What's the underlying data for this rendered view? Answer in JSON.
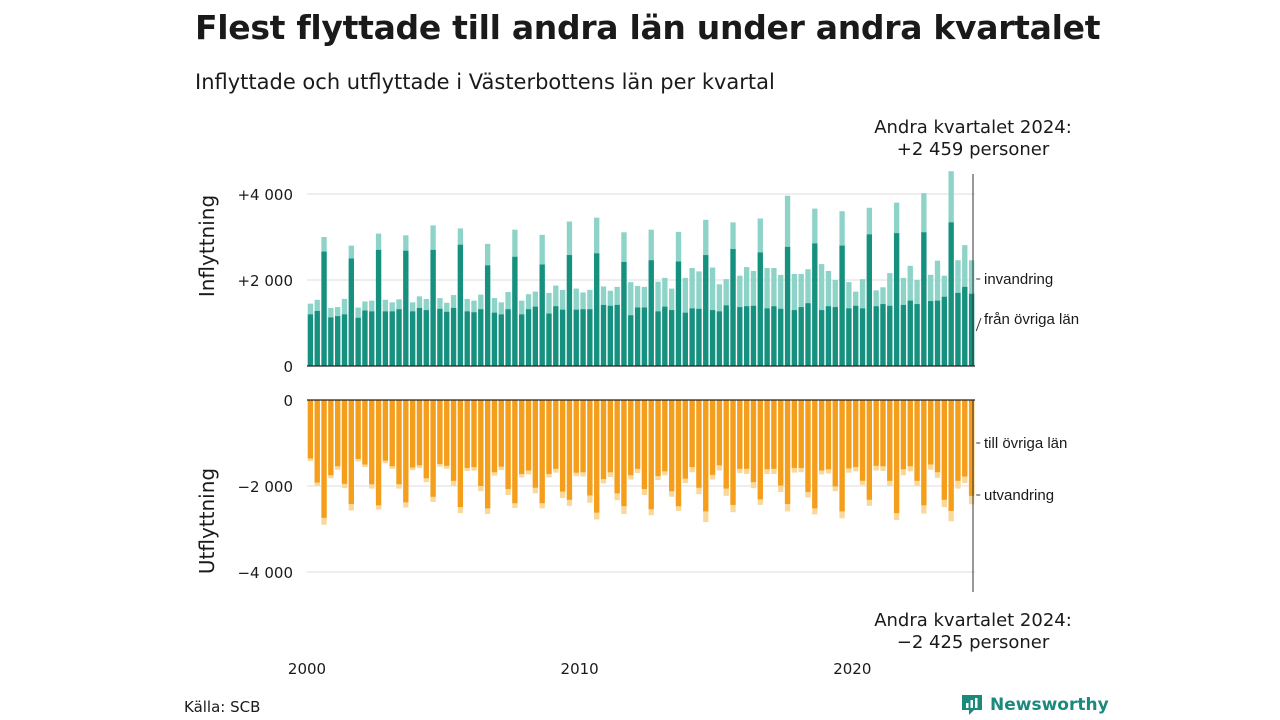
{
  "header": {
    "title": "Flest flyttade till andra län under andra kvartalet",
    "subtitle": "Inflyttade och utflyttade i Västerbottens län per kvartal"
  },
  "footer": {
    "source": "Källa: SCB",
    "brand": "Newsworthy"
  },
  "annotations": {
    "top_line1": "Andra kvartalet 2024:",
    "top_line2": "+2 459 personer",
    "bottom_line1": "Andra kvartalet 2024:",
    "bottom_line2": "−2 425 personer"
  },
  "colors": {
    "in_total": "#8dd3c7",
    "in_other_counties": "#16917f",
    "out_total": "#f9d89a",
    "out_other_counties": "#f59e1b",
    "brand": "#1b8a7c"
  },
  "chart_data": {
    "type": "bar",
    "x": {
      "start_year": 2000,
      "start_quarter": 1,
      "end_year": 2024,
      "end_quarter": 2,
      "tick_labels": [
        "2000",
        "2010",
        "2020"
      ]
    },
    "panels": [
      {
        "ylabel": "Inflyttning",
        "ylim": [
          0,
          4500
        ],
        "ticks": [
          0,
          2000,
          4000
        ],
        "tick_labels": [
          "0",
          "+2 000",
          "+4 000"
        ],
        "series": [
          {
            "name": "invandring",
            "role": "total",
            "values": [
              1450,
              1540,
              3000,
              1350,
              1370,
              1560,
              2800,
              1360,
              1500,
              1520,
              3080,
              1540,
              1480,
              1550,
              3040,
              1480,
              1620,
              1560,
              3270,
              1580,
              1470,
              1650,
              3200,
              1560,
              1520,
              1660,
              2840,
              1580,
              1480,
              1720,
              3170,
              1520,
              1670,
              1730,
              3050,
              1700,
              1870,
              1770,
              3360,
              1800,
              1710,
              1770,
              3450,
              1850,
              1750,
              1840,
              3110,
              1950,
              1860,
              1840,
              3170,
              1960,
              2050,
              1800,
              3120,
              2050,
              2280,
              2200,
              3400,
              2290,
              1900,
              2020,
              3340,
              2100,
              2300,
              2210,
              3430,
              2280,
              2280,
              2120,
              3960,
              2140,
              2140,
              2250,
              3660,
              2370,
              2210,
              2000,
              3600,
              1950,
              1730,
              2020,
              3680,
              1760,
              1830,
              2160,
              3800,
              2050,
              2330,
              2000,
              4020,
              2120,
              2450,
              2100,
              4530,
              2460,
              2810,
              2459
            ]
          },
          {
            "name": "från övriga län",
            "role": "part",
            "values": [
              1200,
              1280,
              2660,
              1130,
              1160,
              1200,
              2500,
              1120,
              1290,
              1270,
              2700,
              1270,
              1270,
              1320,
              2680,
              1270,
              1350,
              1300,
              2700,
              1330,
              1260,
              1350,
              2820,
              1270,
              1250,
              1320,
              2340,
              1240,
              1200,
              1320,
              2540,
              1200,
              1320,
              1380,
              2360,
              1220,
              1390,
              1310,
              2580,
              1310,
              1320,
              1320,
              2620,
              1420,
              1400,
              1420,
              2420,
              1180,
              1360,
              1360,
              2460,
              1270,
              1380,
              1300,
              2430,
              1240,
              1340,
              1330,
              2580,
              1300,
              1270,
              1410,
              2720,
              1370,
              1390,
              1400,
              2640,
              1340,
              1390,
              1330,
              2770,
              1300,
              1370,
              1460,
              2850,
              1300,
              1390,
              1370,
              2800,
              1340,
              1400,
              1340,
              3060,
              1390,
              1440,
              1400,
              3090,
              1420,
              1520,
              1440,
              3110,
              1510,
              1520,
              1610,
              3340,
              1700,
              1840,
              1680
            ]
          }
        ]
      },
      {
        "ylabel": "Utflyttning",
        "ylim": [
          -4500,
          0
        ],
        "ticks": [
          0,
          -2000,
          -4000
        ],
        "tick_labels": [
          "0",
          "−2 000",
          "−4 000"
        ],
        "series": [
          {
            "name": "utvandring",
            "role": "total",
            "values": [
              -1420,
              -2000,
              -2900,
              -1820,
              -1620,
              -2050,
              -2570,
              -1430,
              -1560,
              -2060,
              -2550,
              -1470,
              -1600,
              -2060,
              -2500,
              -1630,
              -1580,
              -1910,
              -2370,
              -1550,
              -1600,
              -1990,
              -2630,
              -1650,
              -1640,
              -2120,
              -2650,
              -1760,
              -1630,
              -2210,
              -2510,
              -1800,
              -1730,
              -2170,
              -2520,
              -1800,
              -1690,
              -2280,
              -2460,
              -1770,
              -1780,
              -2390,
              -2780,
              -1940,
              -1790,
              -2330,
              -2650,
              -1850,
              -1700,
              -2210,
              -2680,
              -1860,
              -1750,
              -2250,
              -2580,
              -1930,
              -1680,
              -2190,
              -2840,
              -1850,
              -1640,
              -2230,
              -2610,
              -1700,
              -1720,
              -2050,
              -2440,
              -1720,
              -1720,
              -2140,
              -2590,
              -1690,
              -1680,
              -2270,
              -2660,
              -1730,
              -1710,
              -2120,
              -2750,
              -1690,
              -1660,
              -1980,
              -2460,
              -1640,
              -1650,
              -2000,
              -2790,
              -1750,
              -1660,
              -2010,
              -2640,
              -1620,
              -1810,
              -2490,
              -2820,
              -2060,
              -1930,
              -2425
            ]
          },
          {
            "name": "till övriga län",
            "role": "part",
            "values": [
              -1360,
              -1920,
              -2740,
              -1750,
              -1540,
              -1950,
              -2420,
              -1370,
              -1500,
              -1960,
              -2450,
              -1410,
              -1540,
              -1960,
              -2380,
              -1570,
              -1520,
              -1820,
              -2250,
              -1490,
              -1530,
              -1880,
              -2490,
              -1580,
              -1560,
              -2000,
              -2520,
              -1680,
              -1550,
              -2070,
              -2400,
              -1720,
              -1640,
              -2040,
              -2400,
              -1720,
              -1600,
              -2130,
              -2320,
              -1690,
              -1680,
              -2220,
              -2620,
              -1840,
              -1680,
              -2170,
              -2470,
              -1750,
              -1600,
              -2070,
              -2540,
              -1770,
              -1660,
              -2120,
              -2470,
              -1830,
              -1560,
              -2040,
              -2590,
              -1740,
              -1520,
              -2060,
              -2440,
              -1600,
              -1600,
              -1910,
              -2310,
              -1610,
              -1600,
              -1990,
              -2420,
              -1580,
              -1580,
              -2140,
              -2520,
              -1640,
              -1610,
              -2010,
              -2590,
              -1590,
              -1560,
              -1880,
              -2320,
              -1530,
              -1540,
              -1880,
              -2630,
              -1610,
              -1540,
              -1880,
              -2450,
              -1500,
              -1680,
              -2320,
              -2580,
              -1880,
              -1780,
              -2230
            ]
          }
        ]
      }
    ]
  }
}
